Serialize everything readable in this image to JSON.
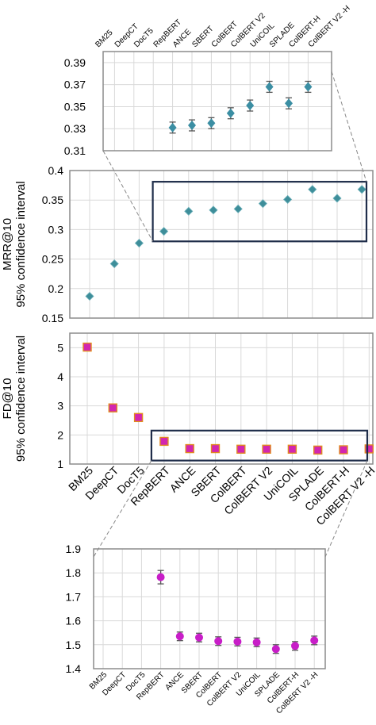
{
  "colors": {
    "mrr": "#3e8e9a",
    "mrr_zoom": "#3b8ea3",
    "fd_fill": "#d226b0",
    "fd_edge": "#e08a20",
    "fd_zoom": "#c81ec8",
    "highlight": "#1f2d4a",
    "grid": "#d9d9d9",
    "error": "#555555"
  },
  "chart_data": [
    {
      "id": "mrr_zoom",
      "type": "scatter",
      "categories": [
        "BM25",
        "DeepCT",
        "DocT5",
        "RepBERT",
        "ANCE",
        "SBERT",
        "ColBERT",
        "ColBERT V2",
        "UniCOIL",
        "SPLADE",
        "ColBERT-H",
        "ColBERT V2 -H"
      ],
      "values": [
        null,
        null,
        null,
        null,
        0.331,
        0.333,
        0.335,
        0.344,
        0.351,
        0.368,
        0.353,
        0.368
      ],
      "errors": [
        null,
        null,
        null,
        null,
        0.005,
        0.005,
        0.005,
        0.005,
        0.005,
        0.005,
        0.005,
        0.005
      ],
      "ylim": [
        0.31,
        0.4
      ],
      "yticks": [
        "0.39",
        "0.37",
        "0.35",
        "0.33",
        "0.31"
      ],
      "ytick_values": [
        0.39,
        0.37,
        0.35,
        0.33,
        0.31
      ],
      "grid": true
    },
    {
      "id": "mrr",
      "type": "scatter",
      "categories": [
        "BM25",
        "DeepCT",
        "DocT5",
        "RepBERT",
        "ANCE",
        "SBERT",
        "ColBERT",
        "ColBERT V2",
        "UniCOIL",
        "SPLADE",
        "ColBERT-H",
        "ColBERT V2 -H"
      ],
      "values": [
        0.187,
        0.242,
        0.277,
        0.297,
        0.331,
        0.333,
        0.335,
        0.344,
        0.351,
        0.368,
        0.353,
        0.368
      ],
      "ylim": [
        0.15,
        0.4
      ],
      "yticks": [
        "0.4",
        "0.35",
        "0.3",
        "0.25",
        "0.2",
        "0.15"
      ],
      "ytick_values": [
        0.4,
        0.35,
        0.3,
        0.25,
        0.2,
        0.15
      ],
      "ylabel": "MRR@10",
      "ylabel2": "95% confidence interval",
      "grid": true
    },
    {
      "id": "fd",
      "type": "scatter",
      "categories": [
        "BM25",
        "DeepCT",
        "DocT5",
        "RepBERT",
        "ANCE",
        "SBERT",
        "ColBERT",
        "ColBERT V2",
        "UniCOIL",
        "SPLADE",
        "ColBERT-H",
        "ColBERT V2 -H"
      ],
      "values": [
        5.02,
        2.93,
        2.6,
        1.78,
        1.53,
        1.53,
        1.51,
        1.51,
        1.51,
        1.48,
        1.49,
        1.52
      ],
      "ylim": [
        1,
        5.5
      ],
      "yticks": [
        "5",
        "4",
        "3",
        "2",
        "1"
      ],
      "ytick_values": [
        5,
        4,
        3,
        2,
        1
      ],
      "ylabel": "FD@10",
      "ylabel2": "95% confidence interval",
      "grid": true
    },
    {
      "id": "fd_zoom",
      "type": "scatter",
      "categories": [
        "BM25",
        "DeepCT",
        "DocT5",
        "RepBERT",
        "ANCE",
        "SBERT",
        "ColBERT",
        "ColBERT V2",
        "UniCOIL",
        "SPLADE",
        "ColBERT-H",
        "ColBERT V2 -H"
      ],
      "values": [
        null,
        null,
        null,
        1.782,
        1.535,
        1.53,
        1.515,
        1.513,
        1.51,
        1.482,
        1.495,
        1.518
      ],
      "errors": [
        null,
        null,
        null,
        0.028,
        0.018,
        0.018,
        0.018,
        0.018,
        0.018,
        0.018,
        0.018,
        0.018
      ],
      "ylim": [
        1.4,
        1.9
      ],
      "yticks": [
        "1.9",
        "1.8",
        "1.7",
        "1.6",
        "1.5",
        "1.4"
      ],
      "ytick_values": [
        1.9,
        1.8,
        1.7,
        1.6,
        1.5,
        1.4
      ],
      "grid": true
    }
  ]
}
